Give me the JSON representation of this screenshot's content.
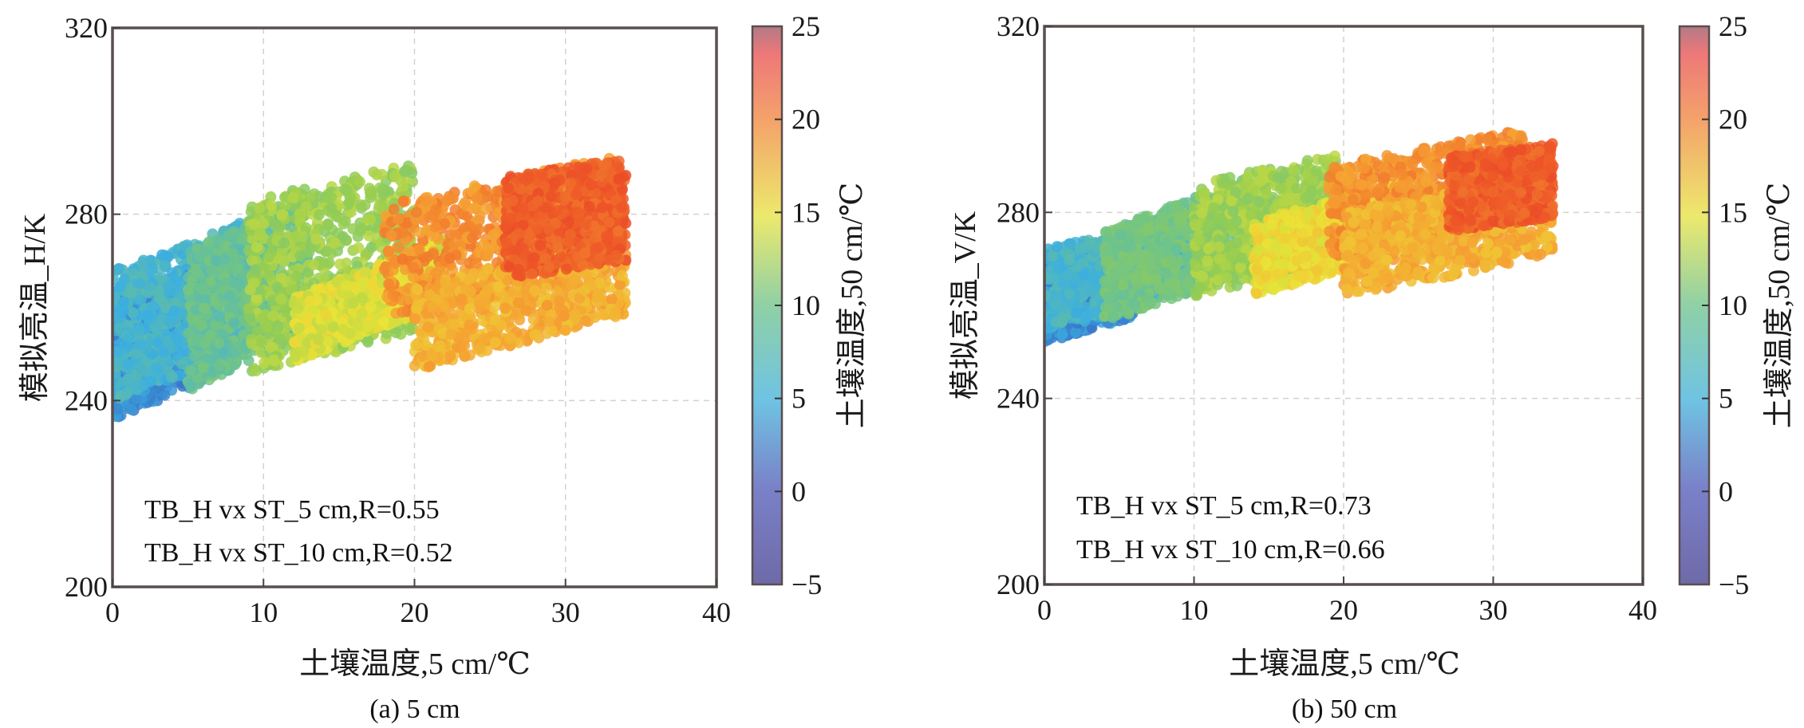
{
  "chart_data": [
    {
      "type": "scatter",
      "panel_caption": "(a) 5 cm",
      "xlabel": "土壤温度,5 cm/℃",
      "ylabel": "模拟亮温_H/K",
      "colorbar_label": "土壤温度,50 cm/℃",
      "xlim": [
        0,
        40
      ],
      "ylim": [
        200,
        320
      ],
      "clim": [
        -5,
        25
      ],
      "xticks": [
        "0",
        "10",
        "20",
        "30",
        "40"
      ],
      "yticks": [
        "200",
        "240",
        "280",
        "320"
      ],
      "cticks": [
        "−5",
        "0",
        "5",
        "10",
        "15",
        "20",
        "25"
      ],
      "grid": true,
      "annotations": [
        "TB_H vx ST_5 cm,R=0.55",
        "TB_H vx ST_10 cm,R=0.52"
      ],
      "clusters": [
        {
          "x": [
            0,
            6
          ],
          "y_start": [
            236,
            262
          ],
          "slope": 1.3,
          "c": 1
        },
        {
          "x": [
            0,
            9
          ],
          "y_start": [
            240,
            268
          ],
          "slope": 1.2,
          "c": 4
        },
        {
          "x": [
            5,
            13
          ],
          "y_start": [
            242,
            272
          ],
          "slope": 1.6,
          "c": 7
        },
        {
          "x": [
            9,
            20
          ],
          "y_start": [
            246,
            283
          ],
          "slope": 0.75,
          "c": 11
        },
        {
          "x": [
            12,
            22
          ],
          "y_start": [
            248,
            262
          ],
          "slope": 1.3,
          "c": 14
        },
        {
          "x": [
            18,
            33
          ],
          "y_start": [
            258,
            282
          ],
          "slope": 0.7,
          "c": 20
        },
        {
          "x": [
            20,
            34
          ],
          "y_start": [
            246,
            264
          ],
          "slope": 0.9,
          "c": 18
        },
        {
          "x": [
            26,
            34
          ],
          "y_start": [
            266,
            288
          ],
          "slope": 0.5,
          "c": 23
        }
      ]
    },
    {
      "type": "scatter",
      "panel_caption": "(b) 50 cm",
      "xlabel": "土壤温度,5 cm/℃",
      "ylabel": "模拟亮温_V/K",
      "colorbar_label": "土壤温度,50 cm/℃",
      "xlim": [
        0,
        40
      ],
      "ylim": [
        200,
        320
      ],
      "clim": [
        -5,
        25
      ],
      "xticks": [
        "0",
        "10",
        "20",
        "30",
        "40"
      ],
      "yticks": [
        "200",
        "240",
        "280",
        "320"
      ],
      "cticks": [
        "−5",
        "0",
        "5",
        "10",
        "15",
        "20",
        "25"
      ],
      "grid": true,
      "annotations": [
        "TB_H vx ST_5 cm,R=0.73",
        "TB_H vx ST_10 cm,R=0.66"
      ],
      "clusters": [
        {
          "x": [
            0,
            6
          ],
          "y_start": [
            252,
            270
          ],
          "slope": 0.9,
          "c": 1
        },
        {
          "x": [
            0,
            10
          ],
          "y_start": [
            254,
            272
          ],
          "slope": 0.9,
          "c": 4
        },
        {
          "x": [
            4,
            14
          ],
          "y_start": [
            256,
            276
          ],
          "slope": 1.2,
          "c": 8
        },
        {
          "x": [
            10,
            20
          ],
          "y_start": [
            262,
            286
          ],
          "slope": 0.7,
          "c": 11
        },
        {
          "x": [
            14,
            24
          ],
          "y_start": [
            262,
            278
          ],
          "slope": 0.9,
          "c": 15
        },
        {
          "x": [
            19,
            32
          ],
          "y_start": [
            270,
            290
          ],
          "slope": 0.6,
          "c": 20
        },
        {
          "x": [
            20,
            34
          ],
          "y_start": [
            262,
            280
          ],
          "slope": 0.6,
          "c": 18
        },
        {
          "x": [
            27,
            34
          ],
          "y_start": [
            276,
            292
          ],
          "slope": 0.4,
          "c": 23
        }
      ]
    }
  ]
}
